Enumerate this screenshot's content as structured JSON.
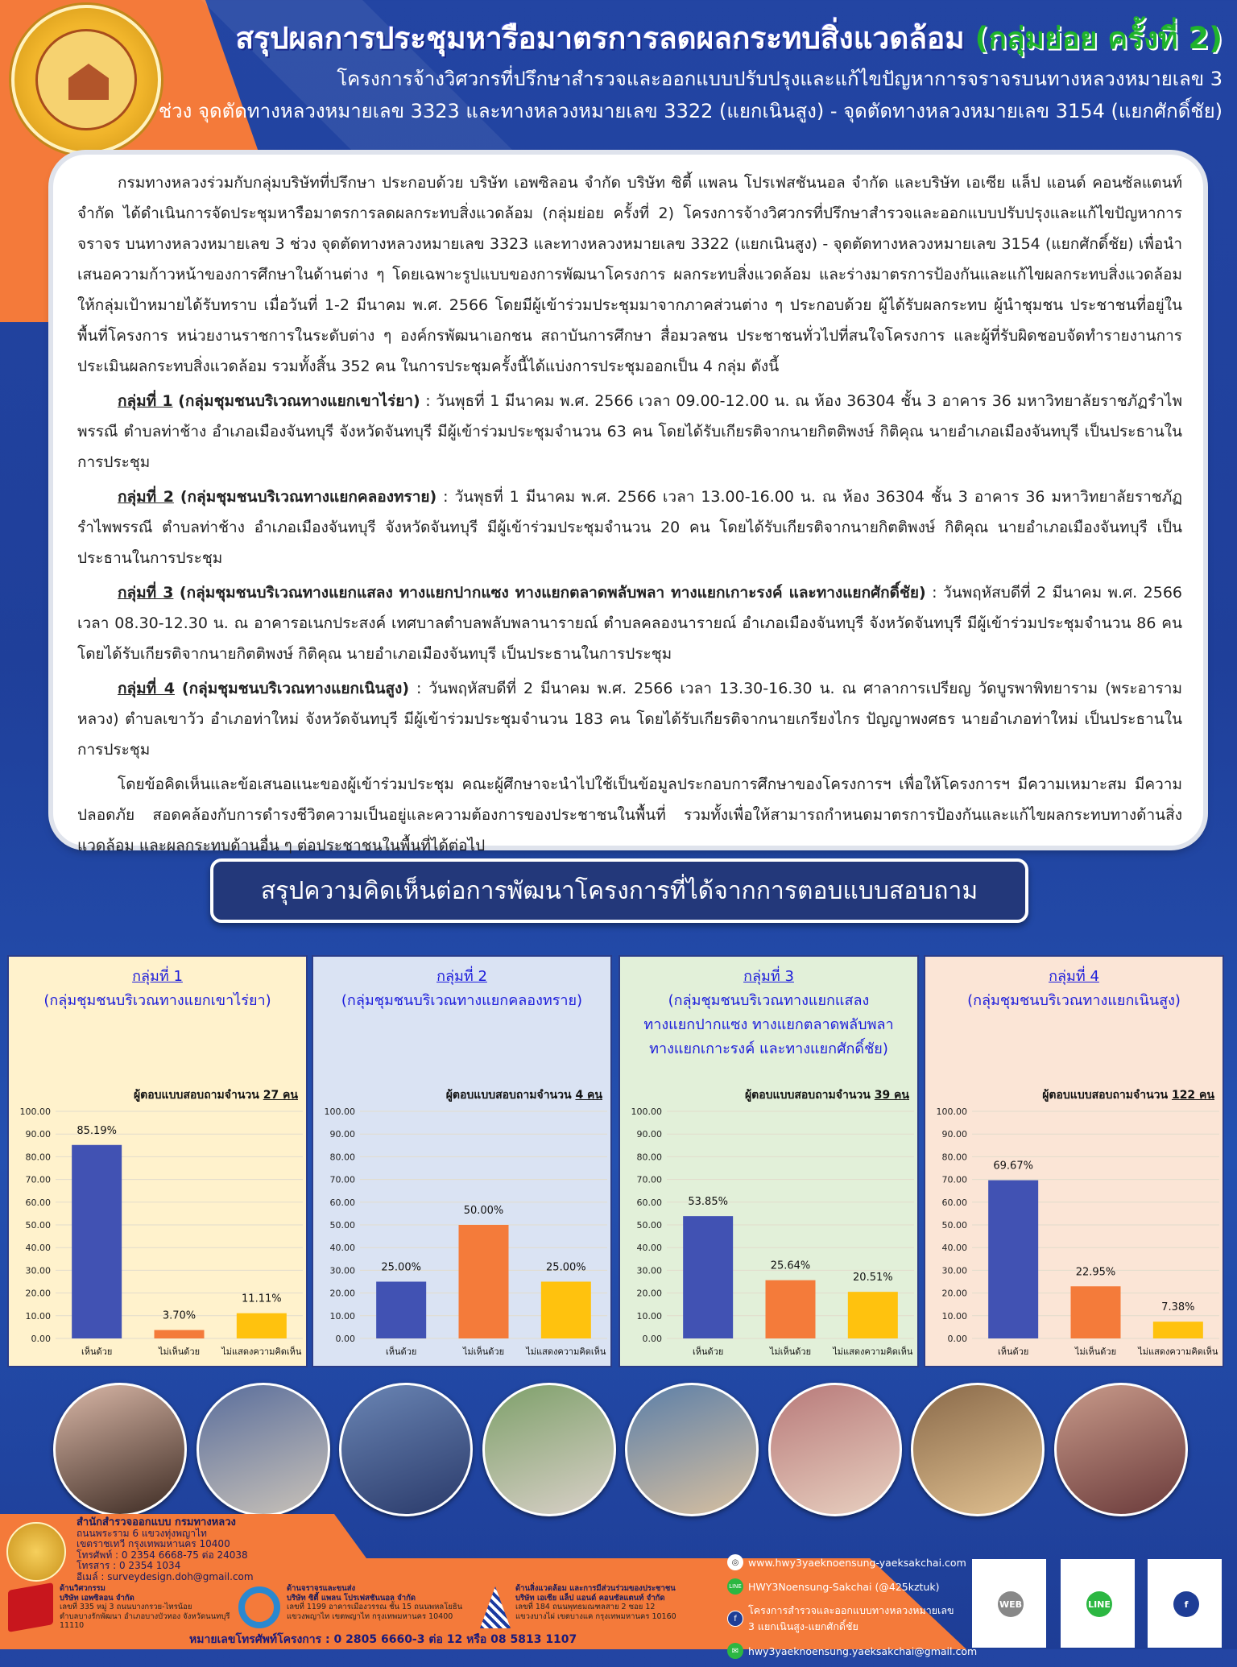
{
  "header": {
    "title_main": "สรุปผลการประชุมหารือมาตรการลดผลกระทบสิ่งแวดล้อม",
    "title_highlight": "(กลุ่มย่อย ครั้งที่ 2)",
    "subtitle_1": "โครงการจ้างวิศวกรที่ปรึกษาสำรวจและออกแบบปรับปรุงและแก้ไขปัญหาการจราจรบนทางหลวงหมายเลข 3",
    "subtitle_2": "ช่วง จุดตัดทางหลวงหมายเลข 3323 และทางหลวงหมายเลข 3322 (แยกเนินสูง) - จุดตัดทางหลวงหมายเลข 3154 (แยกศักดิ์ชัย)",
    "logo_text": "กรมทางหลวง"
  },
  "body": {
    "intro": "กรมทางหลวงร่วมกับกลุ่มบริษัทที่ปรึกษา ประกอบด้วย บริษัท เอพซิลอน จำกัด บริษัท ซิตี้ แพลน โปรเฟสชันนอล จำกัด และบริษัท เอเซีย แล็ป แอนด์ คอนซัลแตนท์ จำกัด ได้ดำเนินการจัดประชุมหารือมาตรการลดผลกระทบสิ่งแวดล้อม (กลุ่มย่อย ครั้งที่ 2) โครงการจ้างวิศวกรที่ปรึกษาสำรวจและออกแบบปรับปรุงและแก้ไขปัญหาการจราจร บนทางหลวงหมายเลข 3 ช่วง จุดตัดทางหลวงหมายเลข 3323 และทางหลวงหมายเลข 3322 (แยกเนินสูง) - จุดตัดทางหลวงหมายเลข 3154 (แยกศักดิ์ชัย) เพื่อนำเสนอความก้าวหน้าของการศึกษาในด้านต่าง ๆ โดยเฉพาะรูปแบบของการพัฒนาโครงการ ผลกระทบสิ่งแวดล้อม และร่างมาตรการป้องกันและแก้ไขผลกระทบสิ่งแวดล้อม ให้กลุ่มเป้าหมายได้รับทราบ เมื่อวันที่ 1-2 มีนาคม พ.ศ. 2566 โดยมีผู้เข้าร่วมประชุมมาจากภาคส่วนต่าง ๆ ประกอบด้วย ผู้ได้รับผลกระทบ ผู้นำชุมชน ประชาชนที่อยู่ในพื้นที่โครงการ หน่วยงานราชการในระดับต่าง ๆ องค์กรพัฒนาเอกชน สถาบันการศึกษา สื่อมวลชน ประชาชนทั่วไปที่สนใจโครงการ และผู้ที่รับผิดชอบจัดทำรายงานการประเมินผลกระทบสิ่งแวดล้อม รวมทั้งสิ้น 352 คน ในการประชุมครั้งนี้ได้แบ่งการประชุมออกเป็น 4 กลุ่ม ดังนี้",
    "groups": [
      {
        "label": "กลุ่มที่ 1",
        "name": "(กลุ่มชุมชนบริเวณทางแยกเขาไร่ยา)",
        "text": " : วันพุธที่ 1 มีนาคม พ.ศ. 2566 เวลา 09.00-12.00 น. ณ ห้อง 36304 ชั้น 3 อาคาร 36 มหาวิทยาลัยราชภัฏรำไพพรรณี ตำบลท่าช้าง อำเภอเมืองจันทบุรี จังหวัดจันทบุรี มีผู้เข้าร่วมประชุมจำนวน 63 คน โดยได้รับเกียรติจากนายกิตติพงษ์ กิติคุณ นายอำเภอเมืองจันทบุรี เป็นประธานในการประชุม"
      },
      {
        "label": "กลุ่มที่ 2",
        "name": "(กลุ่มชุมชนบริเวณทางแยกคลองทราย)",
        "text": " : วันพุธที่ 1 มีนาคม พ.ศ. 2566 เวลา 13.00-16.00 น. ณ ห้อง 36304 ชั้น 3 อาคาร 36 มหาวิทยาลัยราชภัฏรำไพพรรณี ตำบลท่าช้าง อำเภอเมืองจันทบุรี จังหวัดจันทบุรี มีผู้เข้าร่วมประชุมจำนวน 20 คน โดยได้รับเกียรติจากนายกิตติพงษ์ กิติคุณ นายอำเภอเมืองจันทบุรี เป็นประธานในการประชุม"
      },
      {
        "label": "กลุ่มที่ 3",
        "name": "(กลุ่มชุมชนบริเวณทางแยกแสลง ทางแยกปากแซง ทางแยกตลาดพลับพลา ทางแยกเกาะรงค์ และทางแยกศักดิ์ชัย)",
        "text": " : วันพฤหัสบดีที่ 2 มีนาคม พ.ศ. 2566 เวลา 08.30-12.30 น. ณ อาคารอเนกประสงค์ เทศบาลตำบลพลับพลานารายณ์ ตำบลคลองนารายณ์ อำเภอเมืองจันทบุรี จังหวัดจันทบุรี มีผู้เข้าร่วมประชุมจำนวน 86 คน โดยได้รับเกียรติจากนายกิตติพงษ์ กิติคุณ นายอำเภอเมืองจันทบุรี เป็นประธานในการประชุม"
      },
      {
        "label": "กลุ่มที่ 4",
        "name": "(กลุ่มชุมชนบริเวณทางแยกเนินสูง)",
        "text": " : วันพฤหัสบดีที่ 2 มีนาคม พ.ศ. 2566 เวลา 13.30-16.30 น. ณ ศาลาการเปรียญ วัดบูรพาพิทยาราม (พระอารามหลวง) ตำบลเขาวัว อำเภอท่าใหม่ จังหวัดจันทบุรี มีผู้เข้าร่วมประชุมจำนวน 183 คน โดยได้รับเกียรติจากนายเกรียงไกร ปัญญาพงศธร นายอำเภอท่าใหม่ เป็นประธานในการประชุม"
      }
    ],
    "closing": "โดยข้อคิดเห็นและข้อเสนอแนะของผู้เข้าร่วมประชุม คณะผู้ศึกษาจะนำไปใช้เป็นข้อมูลประกอบการศึกษาของโครงการฯ เพื่อให้โครงการฯ มีความเหมาะสม มีความปลอดภัย สอดคล้องกับการดำรงชีวิตความเป็นอยู่และความต้องการของประชาชนในพื้นที่ รวมทั้งเพื่อให้สามารถกำหนดมาตรการป้องกันและแก้ไขผลกระทบทางด้านสิ่งแวดล้อม และผลกระทบด้านอื่น ๆ ต่อประชาชนในพื้นที่ได้ต่อไป"
  },
  "survey_title": "สรุปความคิดเห็นต่อการพัฒนาโครงการที่ได้จากการตอบแบบสอบถาม",
  "colors": {
    "agree": "#4152b3",
    "disagree": "#f47b3a",
    "no_opinion": "#ffc20e"
  },
  "chart_data": [
    {
      "type": "bar",
      "title": "กลุ่มที่ 1",
      "subtitle": [
        "(กลุ่มชุมชนบริเวณทางแยกเขาไร่ยา)"
      ],
      "respondents_label": "ผู้ตอบแบบสอบถามจำนวน",
      "respondents": "27 คน",
      "categories": [
        "เห็นด้วย",
        "ไม่เห็นด้วย",
        "ไม่แสดงความคิดเห็น"
      ],
      "values": [
        85.19,
        3.7,
        11.11
      ],
      "data_labels": [
        "85.19%",
        "3.70%",
        "11.11%"
      ],
      "ylim": [
        0,
        100
      ],
      "yticks": [
        "0.00",
        "10.00",
        "20.00",
        "30.00",
        "40.00",
        "50.00",
        "60.00",
        "70.00",
        "80.00",
        "90.00",
        "100.00"
      ],
      "background": "#fff2cc"
    },
    {
      "type": "bar",
      "title": "กลุ่มที่ 2",
      "subtitle": [
        "(กลุ่มชุมชนบริเวณทางแยกคลองทราย)"
      ],
      "respondents_label": "ผู้ตอบแบบสอบถามจำนวน",
      "respondents": "4 คน",
      "categories": [
        "เห็นด้วย",
        "ไม่เห็นด้วย",
        "ไม่แสดงความคิดเห็น"
      ],
      "values": [
        25.0,
        50.0,
        25.0
      ],
      "data_labels": [
        "25.00%",
        "50.00%",
        "25.00%"
      ],
      "ylim": [
        0,
        100
      ],
      "yticks": [
        "0.00",
        "10.00",
        "20.00",
        "30.00",
        "40.00",
        "50.00",
        "60.00",
        "70.00",
        "80.00",
        "90.00",
        "100.00"
      ],
      "background": "#dae3f3"
    },
    {
      "type": "bar",
      "title": "กลุ่มที่ 3",
      "subtitle": [
        "(กลุ่มชุมชนบริเวณทางแยกแสลง",
        "ทางแยกปากแซง ทางแยกตลาดพลับพลา",
        "ทางแยกเกาะรงค์ และทางแยกศักดิ์ชัย)"
      ],
      "respondents_label": "ผู้ตอบแบบสอบถามจำนวน",
      "respondents": "39 คน",
      "categories": [
        "เห็นด้วย",
        "ไม่เห็นด้วย",
        "ไม่แสดงความคิดเห็น"
      ],
      "values": [
        53.85,
        25.64,
        20.51
      ],
      "data_labels": [
        "53.85%",
        "25.64%",
        "20.51%"
      ],
      "ylim": [
        0,
        100
      ],
      "yticks": [
        "0.00",
        "10.00",
        "20.00",
        "30.00",
        "40.00",
        "50.00",
        "60.00",
        "70.00",
        "80.00",
        "90.00",
        "100.00"
      ],
      "background": "#e2f0d9"
    },
    {
      "type": "bar",
      "title": "กลุ่มที่ 4",
      "subtitle": [
        "(กลุ่มชุมชนบริเวณทางแยกเนินสูง)"
      ],
      "respondents_label": "ผู้ตอบแบบสอบถามจำนวน",
      "respondents": "122 คน",
      "categories": [
        "เห็นด้วย",
        "ไม่เห็นด้วย",
        "ไม่แสดงความคิดเห็น"
      ],
      "values": [
        69.67,
        22.95,
        7.38
      ],
      "data_labels": [
        "69.67%",
        "22.95%",
        "7.38%"
      ],
      "ylim": [
        0,
        100
      ],
      "yticks": [
        "0.00",
        "10.00",
        "20.00",
        "30.00",
        "40.00",
        "50.00",
        "60.00",
        "70.00",
        "80.00",
        "90.00",
        "100.00"
      ],
      "background": "#fbe5d6"
    }
  ],
  "footer": {
    "office": {
      "name": "สำนักสำรวจออกแบบ กรมทางหลวง",
      "lines": [
        "ถนนพระราม 6 แขวงทุ่งพญาไท",
        "เขตราชเทวี กรุงเทพมหานคร 10400",
        "โทรศัพท์ : 0 2354 6668-75 ต่อ 24038",
        "โทรสาร : 0 2354 1034",
        "อีเมล์ : surveydesign.doh@gmail.com"
      ]
    },
    "companies": [
      {
        "role": "ด้านวิศวกรรม",
        "name": "บริษัท เอพซิลอน จำกัด",
        "addr1": "เลขที่ 335 หมู่ 3 ถนนบางกรวย-ไทรน้อย",
        "addr2": "ตำบลบางรักพัฒนา อำเภอบางบัวทอง จังหวัดนนทบุรี 11110",
        "logo": "EPSILON"
      },
      {
        "role": "ด้านจราจรและขนส่ง",
        "name": "บริษัท ซิตี้ แพลน โปรเฟสชันนอล จำกัด",
        "addr1": "เลขที่ 1199 อาคารเมืองวรรณ ชั้น 15 ถนนพหลโยธิน",
        "addr2": "แขวงพญาไท เขตพญาไท กรุงเทพมหานคร 10400",
        "logo": "City Plan Professional"
      },
      {
        "role": "ด้านสิ่งแวดล้อม และการมีส่วนร่วมของประชาชน",
        "name": "บริษัท เอเซีย แล็ป แอนด์ คอนซัลแตนท์ จำกัด",
        "addr1": "เลขที่ 184 ถนนพุทธมณฑลสาย 2 ซอย 12",
        "addr2": "แขวงบางไผ่ เขตบางแค กรุงเทพมหานคร 10160",
        "logo": "Asia Lab and Consultant"
      }
    ],
    "phone": "หมายเลขโทรศัพท์โครงการ : 0 2805 6660-3 ต่อ 12 หรือ 08 5813 1107",
    "contacts": [
      {
        "icon": "globe-icon",
        "text": "www.hwy3yaeknoensung-yaeksakchai.com"
      },
      {
        "icon": "line-icon",
        "text": "HWY3Noensung-Sakchai (@425kztuk)"
      },
      {
        "icon": "facebook-icon",
        "text": "โครงการสำรวจและออกแบบทางหลวงหมายเลข 3 แยกเนินสูง-แยกศักดิ์ชัย"
      },
      {
        "icon": "mail-icon",
        "text": "hwy3yaeknoensung.yaeksakchai@gmail.com"
      }
    ],
    "qr_labels": [
      "WEB",
      "LINE",
      "f"
    ]
  }
}
